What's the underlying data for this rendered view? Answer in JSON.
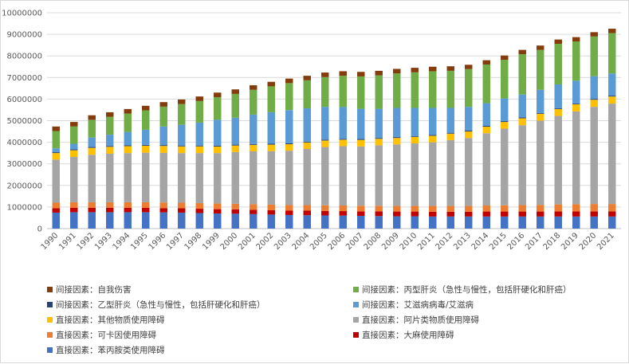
{
  "chart_data": {
    "type": "bar",
    "stacked": true,
    "title": "",
    "xlabel": "",
    "ylabel": "",
    "ylim": [
      0,
      10000000
    ],
    "y_ticks": [
      0,
      1000000,
      2000000,
      3000000,
      4000000,
      5000000,
      6000000,
      7000000,
      8000000,
      9000000,
      10000000
    ],
    "grid": true,
    "legend_position": "bottom",
    "categories": [
      "1990",
      "1991",
      "1992",
      "1993",
      "1994",
      "1995",
      "1996",
      "1997",
      "1998",
      "1999",
      "2000",
      "2001",
      "2002",
      "2003",
      "2004",
      "2005",
      "2006",
      "2007",
      "2008",
      "2009",
      "2010",
      "2011",
      "2012",
      "2013",
      "2014",
      "2015",
      "2016",
      "2017",
      "2018",
      "2019",
      "2020",
      "2021"
    ],
    "series": [
      {
        "name": "直接因素：苯丙胺类使用障碍",
        "color": "#4472c4",
        "values": [
          740000,
          760000,
          760000,
          760000,
          760000,
          760000,
          750000,
          740000,
          720000,
          700000,
          690000,
          670000,
          650000,
          630000,
          620000,
          610000,
          600000,
          590000,
          580000,
          570000,
          570000,
          560000,
          560000,
          560000,
          560000,
          560000,
          560000,
          560000,
          560000,
          560000,
          560000,
          560000
        ]
      },
      {
        "name": "直接因素：大麻使用障碍",
        "color": "#c00000",
        "values": [
          200000,
          200000,
          200000,
          200000,
          200000,
          200000,
          200000,
          200000,
          200000,
          200000,
          200000,
          200000,
          200000,
          200000,
          210000,
          210000,
          210000,
          210000,
          220000,
          220000,
          220000,
          220000,
          220000,
          220000,
          230000,
          230000,
          230000,
          230000,
          240000,
          240000,
          240000,
          240000
        ]
      },
      {
        "name": "直接因素：可卡因使用障碍",
        "color": "#ed7d31",
        "values": [
          260000,
          260000,
          260000,
          260000,
          260000,
          260000,
          260000,
          260000,
          260000,
          260000,
          260000,
          260000,
          260000,
          260000,
          260000,
          260000,
          260000,
          260000,
          260000,
          260000,
          260000,
          270000,
          270000,
          270000,
          280000,
          290000,
          300000,
          310000,
          320000,
          330000,
          340000,
          340000
        ]
      },
      {
        "name": "直接因素：阿片类物质使用障碍",
        "color": "#a5a5a5",
        "values": [
          2000000,
          2100000,
          2200000,
          2250000,
          2280000,
          2300000,
          2300000,
          2300000,
          2320000,
          2340000,
          2400000,
          2450000,
          2480000,
          2520000,
          2600000,
          2700000,
          2750000,
          2750000,
          2800000,
          2850000,
          2900000,
          2950000,
          3050000,
          3150000,
          3350000,
          3550000,
          3700000,
          3900000,
          4100000,
          4300000,
          4500000,
          4650000
        ]
      },
      {
        "name": "直接因素：其他物质使用障碍",
        "color": "#ffc000",
        "values": [
          300000,
          310000,
          320000,
          320000,
          320000,
          320000,
          320000,
          310000,
          310000,
          300000,
          300000,
          300000,
          300000,
          300000,
          300000,
          300000,
          300000,
          300000,
          300000,
          300000,
          300000,
          300000,
          300000,
          300000,
          300000,
          310000,
          320000,
          320000,
          320000,
          330000,
          330000,
          330000
        ]
      },
      {
        "name": "间接因素：乙型肝炎（急性与慢性，包括肝硬化和肝癌）",
        "color": "#264478",
        "values": [
          40000,
          40000,
          40000,
          40000,
          40000,
          40000,
          40000,
          40000,
          40000,
          40000,
          40000,
          40000,
          40000,
          40000,
          40000,
          40000,
          40000,
          40000,
          40000,
          40000,
          40000,
          40000,
          40000,
          40000,
          40000,
          40000,
          40000,
          40000,
          40000,
          40000,
          40000,
          40000
        ]
      },
      {
        "name": "间接因素：艾滋病病毒/艾滋病",
        "color": "#5b9bd5",
        "values": [
          180000,
          260000,
          440000,
          520000,
          620000,
          700000,
          860000,
          960000,
          1060000,
          1200000,
          1250000,
          1360000,
          1460000,
          1540000,
          1540000,
          1520000,
          1470000,
          1400000,
          1350000,
          1350000,
          1300000,
          1250000,
          1150000,
          1100000,
          1050000,
          1050000,
          1060000,
          1070000,
          1100000,
          1050000,
          1050000,
          1030000
        ]
      },
      {
        "name": "间接因素：丙型肝炎（急性与慢性，包括肝硬化和肝癌）",
        "color": "#70ad47",
        "values": [
          800000,
          800000,
          820000,
          830000,
          850000,
          900000,
          920000,
          960000,
          1000000,
          1050000,
          1100000,
          1150000,
          1200000,
          1250000,
          1300000,
          1380000,
          1450000,
          1500000,
          1550000,
          1600000,
          1650000,
          1700000,
          1720000,
          1750000,
          1790000,
          1790000,
          1870000,
          1850000,
          1880000,
          1820000,
          1840000,
          1870000
        ]
      },
      {
        "name": "间接因素：自我伤害",
        "color": "#843c0c",
        "values": [
          210000,
          210000,
          210000,
          210000,
          210000,
          210000,
          210000,
          210000,
          210000,
          210000,
          210000,
          210000,
          210000,
          210000,
          210000,
          210000,
          210000,
          210000,
          210000,
          210000,
          210000,
          210000,
          210000,
          200000,
          200000,
          200000,
          200000,
          200000,
          200000,
          200000,
          200000,
          200000
        ]
      }
    ],
    "legend_order": [
      8,
      7,
      5,
      6,
      4,
      3,
      2,
      1,
      0
    ]
  }
}
